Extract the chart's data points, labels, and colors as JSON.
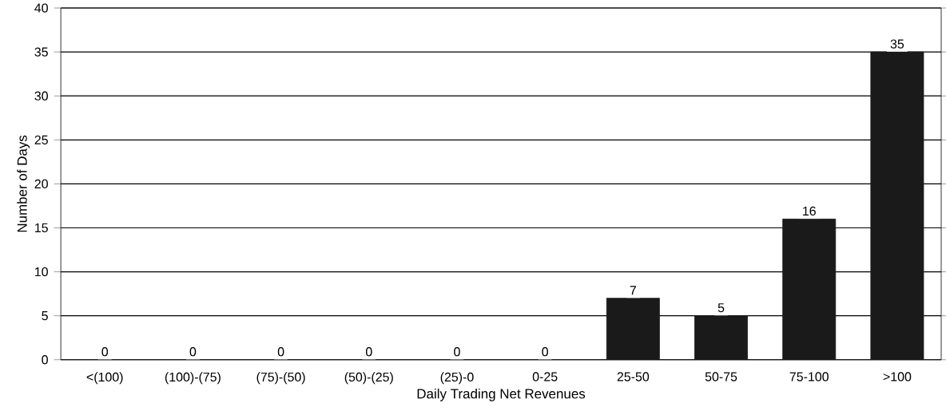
{
  "chart_data": {
    "type": "bar",
    "xlabel": "Daily Trading Net Revenues",
    "ylabel": "Number of Days",
    "categories": [
      "<(100)",
      "(100)-(75)",
      "(75)-(50)",
      "(50)-(25)",
      "(25)-0",
      "0-25",
      "25-50",
      "50-75",
      "75-100",
      ">100"
    ],
    "values": [
      0,
      0,
      0,
      0,
      0,
      0,
      7,
      5,
      16,
      35
    ],
    "color": "#1a1a1a",
    "ylim": [
      0,
      40
    ],
    "yticks": [
      0,
      5,
      10,
      15,
      20,
      25,
      30,
      35,
      40
    ],
    "grid": "y",
    "data_labels": true
  }
}
